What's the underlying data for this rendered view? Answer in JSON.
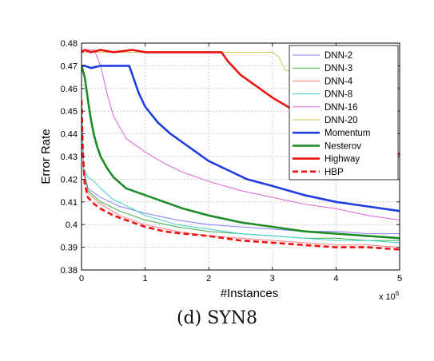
{
  "caption": "(d) SYN8",
  "chart_data": {
    "type": "line",
    "xlabel": "#Instances",
    "ylabel": "Error Rate",
    "x_multiplier": "x 10",
    "x_multiplier_exp": "6",
    "xlim": [
      0,
      5
    ],
    "ylim": [
      0.38,
      0.48
    ],
    "xticks": [
      "0",
      "1",
      "2",
      "3",
      "4",
      "5"
    ],
    "yticks": [
      "0.38",
      "0.39",
      "0.4",
      "0.41",
      "0.42",
      "0.43",
      "0.44",
      "0.45",
      "0.46",
      "0.47",
      "0.48"
    ],
    "grid": true,
    "legend_position": "top-right",
    "series": [
      {
        "name": "DNN-2",
        "color": "#8080ff",
        "width": 1,
        "dash": "",
        "x": [
          0,
          0.03,
          0.1,
          0.3,
          0.6,
          1,
          1.5,
          2,
          2.5,
          3,
          3.5,
          4,
          4.5,
          5
        ],
        "y": [
          0.455,
          0.425,
          0.416,
          0.412,
          0.408,
          0.405,
          0.402,
          0.4,
          0.399,
          0.398,
          0.397,
          0.397,
          0.396,
          0.396
        ]
      },
      {
        "name": "DNN-3",
        "color": "#3cb043",
        "width": 1,
        "dash": "",
        "x": [
          0,
          0.03,
          0.1,
          0.3,
          0.6,
          1,
          1.5,
          2,
          2.5,
          3,
          3.5,
          4,
          4.5,
          5
        ],
        "y": [
          0.455,
          0.424,
          0.415,
          0.41,
          0.406,
          0.402,
          0.399,
          0.397,
          0.396,
          0.395,
          0.394,
          0.394,
          0.393,
          0.393
        ]
      },
      {
        "name": "DNN-4",
        "color": "#ff7f7f",
        "width": 1,
        "dash": "",
        "x": [
          0,
          0.03,
          0.1,
          0.3,
          0.6,
          1,
          1.5,
          2,
          2.5,
          3,
          3.5,
          4,
          4.5,
          5
        ],
        "y": [
          0.455,
          0.423,
          0.414,
          0.409,
          0.404,
          0.4,
          0.397,
          0.395,
          0.394,
          0.393,
          0.392,
          0.391,
          0.391,
          0.39
        ]
      },
      {
        "name": "DNN-8",
        "color": "#40d0d0",
        "width": 1,
        "dash": "",
        "x": [
          0,
          0.03,
          0.1,
          0.2,
          0.3,
          0.5,
          0.8,
          1,
          1.5,
          2,
          2.5,
          3,
          3.5,
          4,
          4.5,
          5
        ],
        "y": [
          0.455,
          0.425,
          0.421,
          0.419,
          0.416,
          0.411,
          0.407,
          0.404,
          0.4,
          0.398,
          0.396,
          0.395,
          0.394,
          0.393,
          0.393,
          0.392
        ]
      },
      {
        "name": "DNN-16",
        "color": "#e060e0",
        "width": 1,
        "dash": "",
        "x": [
          0,
          0.2,
          0.3,
          0.4,
          0.5,
          0.7,
          1,
          1.3,
          1.6,
          2,
          2.5,
          3,
          3.5,
          4,
          4.5,
          5
        ],
        "y": [
          0.477,
          0.477,
          0.47,
          0.458,
          0.448,
          0.438,
          0.432,
          0.427,
          0.423,
          0.419,
          0.415,
          0.412,
          0.409,
          0.407,
          0.404,
          0.402
        ]
      },
      {
        "name": "DNN-20",
        "color": "#c8c850",
        "width": 1,
        "dash": "",
        "x": [
          0,
          1,
          2,
          2.5,
          2.8,
          3.0,
          3.1,
          3.2,
          4.8,
          5
        ],
        "y": [
          0.476,
          0.476,
          0.476,
          0.476,
          0.476,
          0.476,
          0.474,
          0.468,
          0.468,
          0.468
        ]
      },
      {
        "name": "Momentum",
        "color": "#1f3de0",
        "width": 2.6,
        "dash": "",
        "x": [
          0,
          0.05,
          0.15,
          0.3,
          0.45,
          0.6,
          0.75,
          0.8,
          0.9,
          1.0,
          1.2,
          1.4,
          1.6,
          1.8,
          2.0,
          2.3,
          2.6,
          3.0,
          3.5,
          4.0,
          4.5,
          5.0
        ],
        "y": [
          0.47,
          0.47,
          0.469,
          0.47,
          0.47,
          0.47,
          0.47,
          0.466,
          0.458,
          0.452,
          0.445,
          0.44,
          0.436,
          0.432,
          0.428,
          0.424,
          0.42,
          0.417,
          0.413,
          0.41,
          0.408,
          0.406
        ]
      },
      {
        "name": "Nesterov",
        "color": "#1e8b28",
        "width": 2.6,
        "dash": "",
        "x": [
          0,
          0.05,
          0.1,
          0.15,
          0.2,
          0.25,
          0.3,
          0.4,
          0.5,
          0.7,
          1.0,
          1.3,
          1.6,
          2.0,
          2.5,
          3.0,
          3.5,
          4.0,
          4.5,
          5.0
        ],
        "y": [
          0.47,
          0.465,
          0.455,
          0.446,
          0.439,
          0.434,
          0.43,
          0.425,
          0.421,
          0.416,
          0.413,
          0.41,
          0.407,
          0.404,
          0.401,
          0.399,
          0.397,
          0.396,
          0.395,
          0.394
        ]
      },
      {
        "name": "Highway",
        "color": "#ee1111",
        "width": 2.6,
        "dash": "",
        "x": [
          0,
          0.05,
          0.15,
          0.3,
          0.5,
          0.8,
          1.0,
          1.5,
          2.0,
          2.2,
          2.3,
          2.5,
          2.8,
          3.0,
          3.3,
          3.7,
          4.0,
          4.5,
          5.0
        ],
        "y": [
          0.476,
          0.477,
          0.476,
          0.477,
          0.476,
          0.477,
          0.476,
          0.476,
          0.476,
          0.476,
          0.472,
          0.466,
          0.46,
          0.456,
          0.451,
          0.446,
          0.442,
          0.436,
          0.431
        ]
      },
      {
        "name": "HBP",
        "color": "#ee1111",
        "width": 2.6,
        "dash": "7,4",
        "x": [
          0,
          0.02,
          0.05,
          0.1,
          0.2,
          0.3,
          0.5,
          0.8,
          1.0,
          1.3,
          1.6,
          2.0,
          2.5,
          3.0,
          3.5,
          4.0,
          4.5,
          5.0
        ],
        "y": [
          0.455,
          0.432,
          0.418,
          0.412,
          0.409,
          0.407,
          0.404,
          0.401,
          0.399,
          0.397,
          0.396,
          0.395,
          0.393,
          0.392,
          0.391,
          0.39,
          0.39,
          0.389
        ]
      }
    ]
  }
}
